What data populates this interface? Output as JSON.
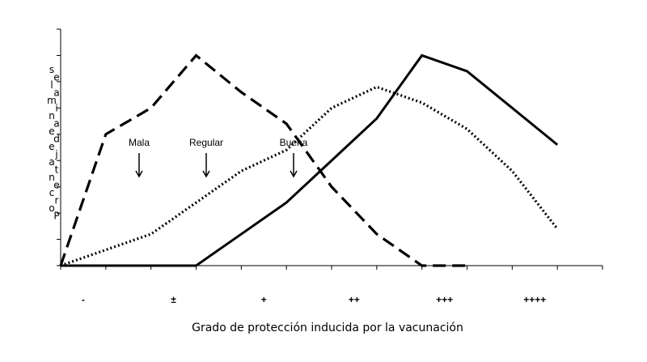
{
  "chart_data": {
    "type": "line",
    "title": "",
    "xlabel": "Grado de protección inducida por la vacunación",
    "ylabel": "Porcentaje de animales",
    "categories": [
      "-",
      "±",
      "+",
      "++",
      "+++",
      "++++"
    ],
    "x": [
      0,
      0.5,
      1,
      1.5,
      2,
      2.5,
      3,
      3.5,
      4,
      4.5,
      5,
      5.5
    ],
    "ylim": [
      0,
      45
    ],
    "grid": false,
    "legend": "none",
    "series": [
      {
        "name": "Mala",
        "style": "dashed",
        "color": "#000000",
        "values": [
          0,
          25,
          30,
          40,
          33,
          27,
          15,
          6,
          0,
          0,
          null,
          null
        ]
      },
      {
        "name": "Regular",
        "style": "dotted",
        "color": "#000000",
        "values": [
          0,
          3,
          6,
          12,
          18,
          22,
          30,
          34,
          31,
          26,
          18,
          7
        ]
      },
      {
        "name": "Buena",
        "style": "solid",
        "color": "#000000",
        "values": [
          0,
          0,
          0,
          0,
          6,
          12,
          20,
          28,
          40,
          37,
          30,
          23
        ]
      }
    ],
    "annotations": [
      {
        "text": "Mala",
        "series": "Mala"
      },
      {
        "text": "Regular",
        "series": "Regular"
      },
      {
        "text": "Buena",
        "series": "Buena"
      }
    ]
  }
}
